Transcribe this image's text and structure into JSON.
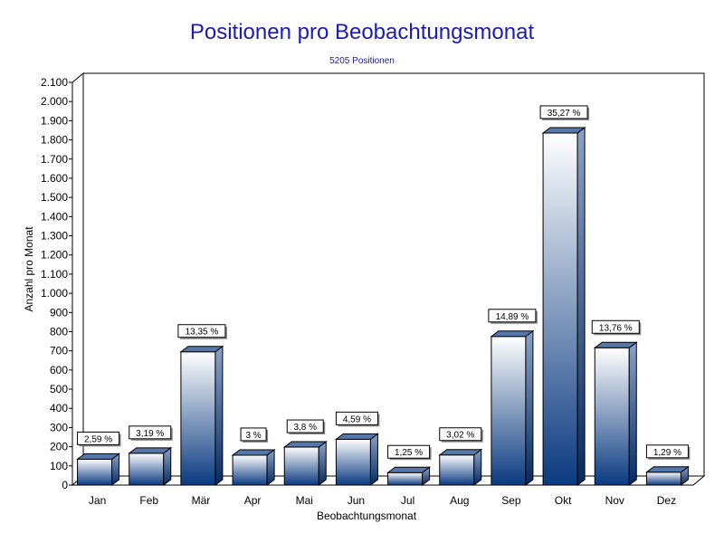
{
  "chart_data": {
    "type": "bar",
    "title": "Positionen pro Beobachtungsmonat",
    "subtitle": "5205 Positionen",
    "xlabel": "Beobachtungsmonat",
    "ylabel": "Anzahl pro Monat",
    "ylim": [
      0,
      2100
    ],
    "yticks": [
      0,
      100,
      200,
      300,
      400,
      500,
      600,
      700,
      800,
      900,
      1000,
      1100,
      1200,
      1300,
      1400,
      1500,
      1600,
      1700,
      1800,
      1900,
      2000,
      2100
    ],
    "ytick_labels": [
      "0",
      "100",
      "200",
      "300",
      "400",
      "500",
      "600",
      "700",
      "800",
      "900",
      "1.000",
      "1.100",
      "1.200",
      "1.300",
      "1.400",
      "1.500",
      "1.600",
      "1.700",
      "1.800",
      "1.900",
      "2.000",
      "2.100"
    ],
    "grid": true,
    "categories": [
      "Jan",
      "Feb",
      "Mär",
      "Apr",
      "Mai",
      "Jun",
      "Jul",
      "Aug",
      "Sep",
      "Okt",
      "Nov",
      "Dez"
    ],
    "values": [
      135,
      166,
      695,
      156,
      198,
      239,
      65,
      157,
      775,
      1836,
      716,
      67
    ],
    "data_labels": [
      "2,59 %",
      "3,19 %",
      "13,35 %",
      "3 %",
      "3,8 %",
      "4,59 %",
      "1,25 %",
      "3,02 %",
      "14,89 %",
      "35,27 %",
      "13,76 %",
      "1,29 %"
    ],
    "bar_colors": {
      "top": "#ffffff",
      "bottom": "#0a3a80",
      "side": "#082e66",
      "cap": "#5577aa"
    }
  }
}
